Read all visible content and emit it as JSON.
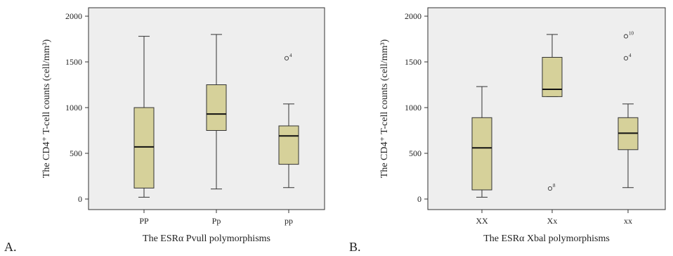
{
  "panels": [
    {
      "letter": "A."
    },
    {
      "letter": "B."
    }
  ],
  "colors": {
    "plot_background": "#eeeeee",
    "box_fill": "#d6d19a",
    "line": "#333333"
  },
  "chart_data": [
    {
      "type": "box",
      "xlabel": "The ESRα Pvull polymorphisms",
      "ylabel": "The CD4⁺ T-cell counts (cell/mm³)",
      "ylim": [
        0,
        2000
      ],
      "yticks": [
        "0",
        "500",
        "1000",
        "1500",
        "2000"
      ],
      "categories": [
        "PP",
        "Pp",
        "pp"
      ],
      "boxes": [
        {
          "category": "PP",
          "min": 20,
          "q1": 120,
          "median": 570,
          "q3": 1000,
          "max": 1780,
          "outliers": []
        },
        {
          "category": "Pp",
          "min": 110,
          "q1": 750,
          "median": 930,
          "q3": 1250,
          "max": 1800,
          "outliers": []
        },
        {
          "category": "pp",
          "min": 125,
          "q1": 380,
          "median": 690,
          "q3": 800,
          "max": 1040,
          "outliers": [
            {
              "value": 1540,
              "label": "4"
            }
          ]
        }
      ]
    },
    {
      "type": "box",
      "xlabel": "The ESRα Xbal polymorphisms",
      "ylabel": "The CD4⁺ T-cell counts (cell/mm³)",
      "ylim": [
        0,
        2000
      ],
      "yticks": [
        "0",
        "500",
        "1000",
        "1500",
        "2000"
      ],
      "categories": [
        "XX",
        "Xx",
        "xx"
      ],
      "boxes": [
        {
          "category": "XX",
          "min": 20,
          "q1": 100,
          "median": 560,
          "q3": 890,
          "max": 1230,
          "outliers": []
        },
        {
          "category": "Xx",
          "min": 1120,
          "q1": 1120,
          "median": 1200,
          "q3": 1550,
          "max": 1800,
          "outliers": [
            {
              "value": 115,
              "label": "8"
            }
          ]
        },
        {
          "category": "xx",
          "min": 125,
          "q1": 540,
          "median": 720,
          "q3": 890,
          "max": 1040,
          "outliers": [
            {
              "value": 1540,
              "label": "4"
            },
            {
              "value": 1780,
              "label": "10"
            }
          ]
        }
      ]
    }
  ]
}
